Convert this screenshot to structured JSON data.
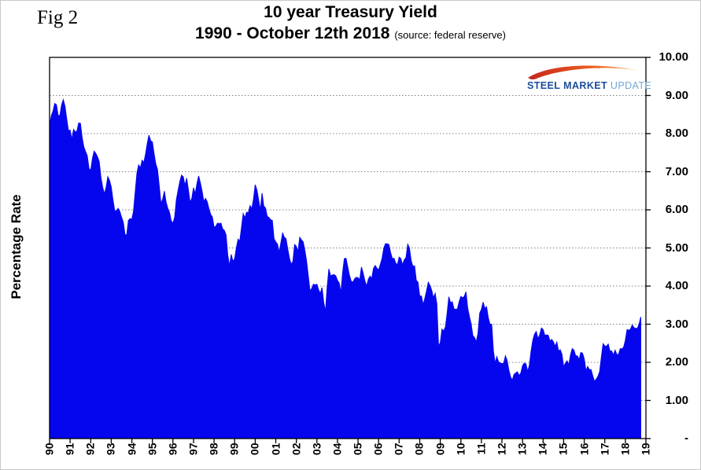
{
  "figure": {
    "fig_label": "Fig 2"
  },
  "header": {
    "title_line1": "10 year Treasury Yield",
    "title_line2": "1990 - October 12th 2018",
    "source_note": "(source: federal reserve)"
  },
  "logo": {
    "steel": "STEEL",
    "market": "MARKET",
    "update": "UPDATE"
  },
  "chart_data": {
    "type": "area",
    "title": "10 year Treasury Yield 1990 - October 12th 2018",
    "series_name": "10 year Treasury Yield",
    "xlabel": "",
    "ylabel": "Percentage Rate",
    "xlim": [
      1990,
      2019
    ],
    "ylim": [
      0,
      10
    ],
    "grid": "horizontal-dotted",
    "legend": "none",
    "fill_color": "#0606ee",
    "grid_color": "#808080",
    "y_tick_labels": [
      "10.00",
      "9.00",
      "8.00",
      "7.00",
      "6.00",
      "5.00",
      "4.00",
      "3.00",
      "2.00",
      "1.00",
      "-"
    ],
    "y_tick_values": [
      10,
      9,
      8,
      7,
      6,
      5,
      4,
      3,
      2,
      1,
      0
    ],
    "x_tick_labels": [
      "90",
      "91",
      "92",
      "93",
      "94",
      "95",
      "96",
      "97",
      "98",
      "99",
      "00",
      "01",
      "02",
      "03",
      "04",
      "05",
      "06",
      "07",
      "08",
      "09",
      "10",
      "11",
      "12",
      "13",
      "14",
      "15",
      "16",
      "17",
      "18",
      "19"
    ],
    "x_tick_years": [
      1990,
      1991,
      1992,
      1993,
      1994,
      1995,
      1996,
      1997,
      1998,
      1999,
      2000,
      2001,
      2002,
      2003,
      2004,
      2005,
      2006,
      2007,
      2008,
      2009,
      2010,
      2011,
      2012,
      2013,
      2014,
      2015,
      2016,
      2017,
      2018,
      2019
    ],
    "x_monthly_start": "1990-01",
    "x_monthly_end": "2018-10",
    "values_monthly": [
      8.21,
      8.47,
      8.59,
      8.79,
      8.76,
      8.48,
      8.47,
      8.75,
      8.89,
      8.72,
      8.39,
      8.08,
      8.09,
      7.85,
      8.11,
      8.04,
      8.07,
      8.28,
      8.27,
      7.9,
      7.65,
      7.53,
      7.42,
      7.09,
      7.03,
      7.34,
      7.54,
      7.48,
      7.39,
      7.26,
      6.84,
      6.59,
      6.42,
      6.59,
      6.87,
      6.77,
      6.6,
      6.26,
      5.98,
      5.97,
      6.04,
      5.96,
      5.81,
      5.68,
      5.36,
      5.33,
      5.72,
      5.77,
      5.75,
      5.97,
      6.48,
      6.97,
      7.18,
      7.1,
      7.3,
      7.24,
      7.46,
      7.74,
      7.96,
      7.81,
      7.78,
      7.47,
      7.2,
      7.06,
      6.63,
      6.17,
      6.28,
      6.49,
      6.2,
      6.04,
      5.93,
      5.71,
      5.65,
      5.81,
      6.27,
      6.51,
      6.74,
      6.91,
      6.87,
      6.64,
      6.83,
      6.53,
      6.2,
      6.3,
      6.58,
      6.42,
      6.69,
      6.89,
      6.71,
      6.49,
      6.22,
      6.3,
      6.21,
      6.03,
      5.88,
      5.81,
      5.54,
      5.57,
      5.65,
      5.64,
      5.65,
      5.5,
      5.46,
      5.34,
      4.81,
      4.53,
      4.83,
      4.65,
      4.72,
      5.0,
      5.23,
      5.18,
      5.54,
      5.9,
      5.79,
      5.94,
      5.92,
      6.11,
      6.03,
      6.28,
      6.66,
      6.52,
      6.26,
      5.99,
      6.44,
      6.1,
      6.05,
      5.83,
      5.8,
      5.74,
      5.72,
      5.24,
      5.16,
      5.1,
      4.89,
      5.14,
      5.39,
      5.28,
      5.24,
      4.97,
      4.73,
      4.57,
      4.65,
      5.09,
      5.04,
      4.91,
      5.28,
      5.21,
      5.16,
      4.93,
      4.65,
      4.26,
      3.87,
      3.94,
      4.05,
      4.03,
      4.05,
      3.9,
      3.81,
      3.96,
      3.57,
      3.33,
      3.98,
      4.45,
      4.27,
      4.29,
      4.3,
      4.27,
      4.15,
      4.08,
      3.83,
      4.35,
      4.72,
      4.73,
      4.5,
      4.28,
      4.13,
      4.1,
      4.19,
      4.23,
      4.22,
      4.17,
      4.5,
      4.34,
      4.14,
      4.0,
      4.18,
      4.26,
      4.2,
      4.46,
      4.54,
      4.47,
      4.42,
      4.57,
      4.72,
      4.99,
      5.11,
      5.11,
      5.09,
      4.88,
      4.72,
      4.73,
      4.6,
      4.56,
      4.76,
      4.72,
      4.56,
      4.69,
      4.75,
      5.1,
      5.0,
      4.67,
      4.52,
      4.53,
      4.15,
      4.1,
      3.74,
      3.74,
      3.51,
      3.68,
      3.88,
      4.1,
      4.01,
      3.89,
      3.69,
      3.81,
      3.53,
      2.42,
      2.52,
      2.87,
      2.82,
      2.93,
      3.29,
      3.72,
      3.56,
      3.59,
      3.4,
      3.39,
      3.4,
      3.59,
      3.73,
      3.69,
      3.73,
      3.85,
      3.42,
      3.2,
      3.01,
      2.7,
      2.65,
      2.54,
      2.76,
      3.29,
      3.39,
      3.58,
      3.41,
      3.46,
      3.17,
      3.0,
      3.0,
      2.3,
      1.98,
      2.15,
      2.01,
      1.98,
      1.97,
      1.97,
      2.17,
      2.05,
      1.8,
      1.62,
      1.53,
      1.68,
      1.72,
      1.75,
      1.65,
      1.72,
      1.91,
      1.98,
      1.96,
      1.76,
      1.93,
      2.3,
      2.58,
      2.74,
      2.81,
      2.62,
      2.72,
      2.9,
      2.86,
      2.71,
      2.72,
      2.71,
      2.56,
      2.6,
      2.54,
      2.42,
      2.53,
      2.3,
      2.33,
      2.21,
      1.88,
      1.98,
      2.04,
      1.94,
      2.2,
      2.36,
      2.32,
      2.17,
      2.17,
      2.07,
      2.26,
      2.24,
      2.09,
      1.78,
      1.89,
      1.81,
      1.81,
      1.64,
      1.5,
      1.56,
      1.63,
      1.76,
      2.14,
      2.49,
      2.43,
      2.42,
      2.48,
      2.3,
      2.3,
      2.19,
      2.32,
      2.21,
      2.2,
      2.36,
      2.35,
      2.4,
      2.58,
      2.86,
      2.84,
      2.87,
      2.98,
      2.91,
      2.89,
      2.89,
      3.0,
      3.19
    ]
  }
}
